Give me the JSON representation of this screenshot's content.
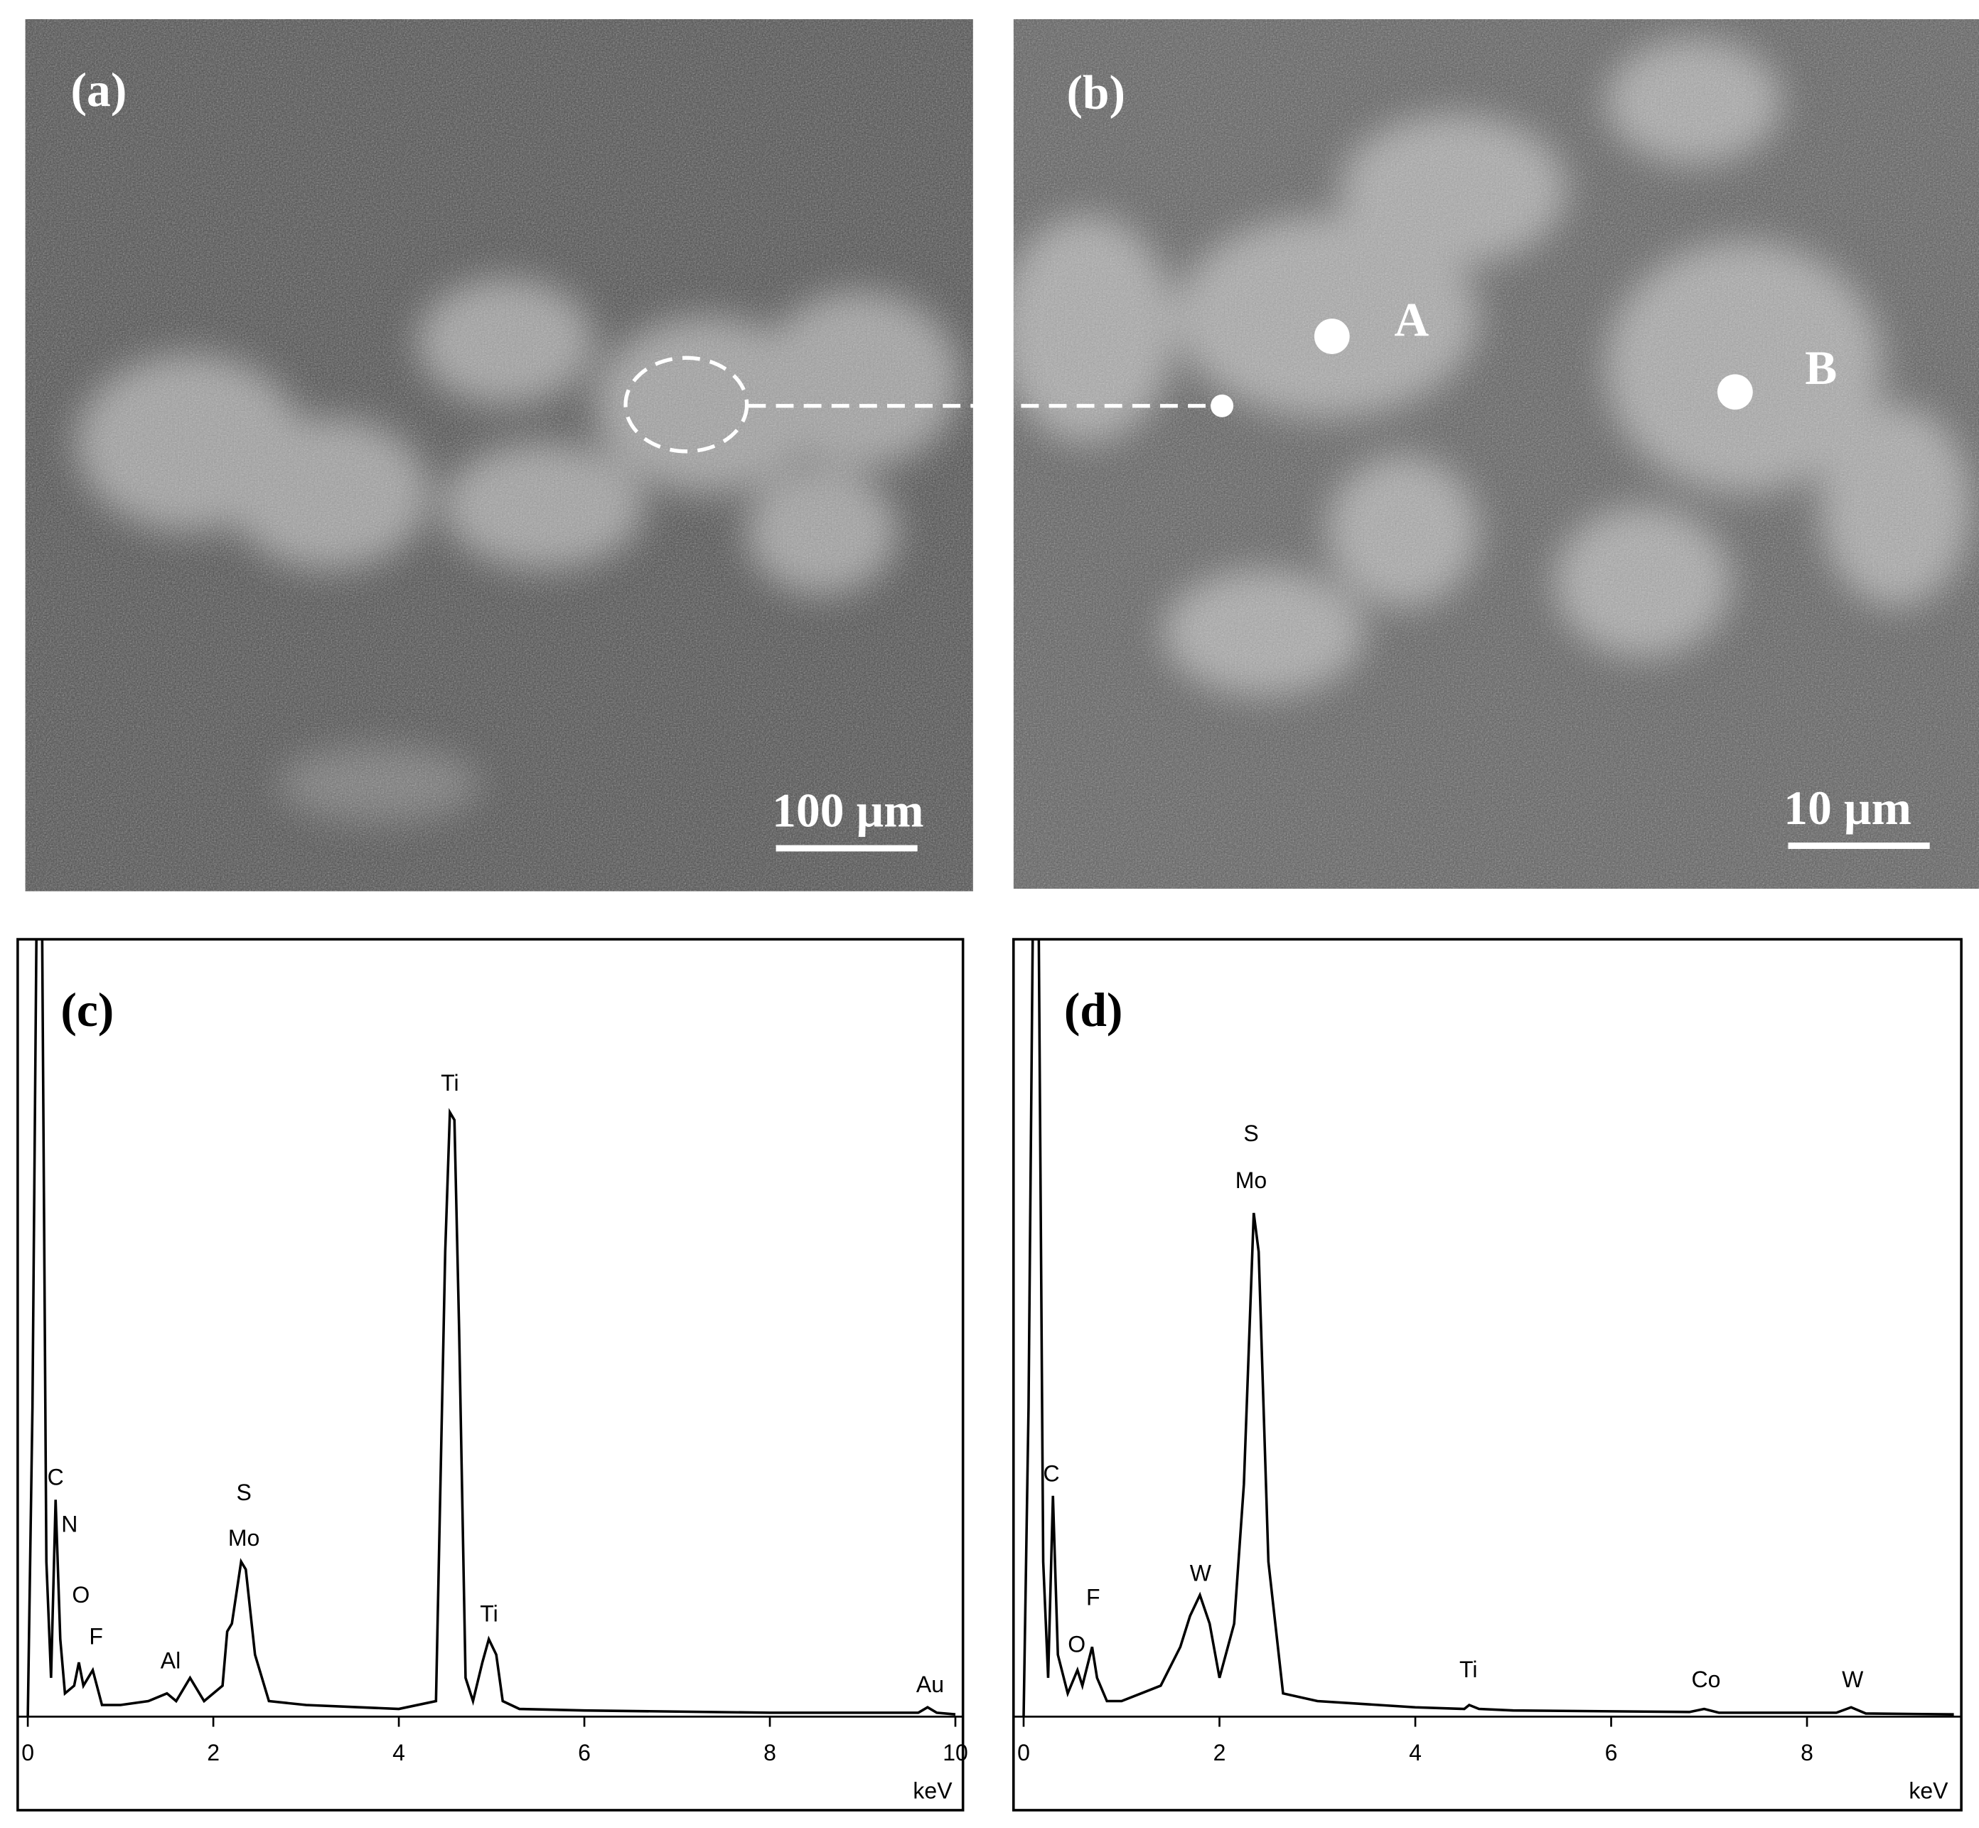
{
  "panels": [
    {
      "label": "(a)",
      "scale_bar": "100 µm"
    },
    {
      "label": "(b)",
      "scale_bar": "10 µm",
      "points": [
        "A",
        "B"
      ]
    }
  ],
  "chart_data": [
    {
      "type": "line",
      "title": "(c)",
      "x_label": "keV",
      "x": [
        0,
        0.05,
        0.1,
        0.15,
        0.2,
        0.25,
        0.3,
        0.35,
        0.4,
        0.5,
        0.55,
        0.6,
        0.7,
        0.8,
        1.0,
        1.3,
        1.5,
        1.6,
        1.75,
        1.9,
        2.1,
        2.15,
        2.2,
        2.3,
        2.35,
        2.45,
        2.6,
        3,
        4,
        4.4,
        4.5,
        4.55,
        4.6,
        4.65,
        4.72,
        4.8,
        4.9,
        4.97,
        5.05,
        5.12,
        5.3,
        6,
        8,
        9.6,
        9.7,
        9.8,
        10
      ],
      "values": [
        0,
        40,
        110,
        110,
        20,
        5,
        28,
        10,
        3,
        4,
        7,
        4,
        6,
        1.5,
        1.5,
        2,
        3,
        2,
        5,
        2,
        4,
        11,
        12,
        20,
        19,
        8,
        2,
        1.5,
        1,
        2,
        60,
        78,
        77,
        50,
        5,
        2,
        7,
        10,
        8,
        2,
        1,
        0.8,
        0.5,
        0.5,
        1.2,
        0.5,
        0.3
      ],
      "color": "#000000",
      "xlim": [
        0,
        10
      ],
      "ylim": [
        0,
        100
      ],
      "xticks": [
        0,
        2,
        4,
        6,
        8,
        10
      ],
      "annotations": [
        "C",
        "N",
        "O",
        "F",
        "Al",
        "S",
        "Mo",
        "Ti",
        "Ti",
        "Au"
      ]
    },
    {
      "type": "line",
      "title": "(d)",
      "x_label": "keV",
      "x": [
        0,
        0.05,
        0.1,
        0.15,
        0.2,
        0.25,
        0.3,
        0.35,
        0.45,
        0.55,
        0.6,
        0.7,
        0.75,
        0.85,
        1.0,
        1.2,
        1.4,
        1.6,
        1.7,
        1.8,
        1.9,
        2.0,
        2.15,
        2.25,
        2.35,
        2.4,
        2.5,
        2.65,
        3,
        4,
        4.5,
        4.55,
        4.65,
        5,
        6.8,
        6.95,
        7.1,
        8.3,
        8.45,
        8.6,
        9.5
      ],
      "values": [
        0,
        40,
        110,
        110,
        20,
        5,
        28.5,
        8,
        3,
        6,
        4,
        9,
        5,
        2,
        2,
        3,
        4,
        9,
        13,
        15.7,
        12,
        5,
        12,
        30,
        65,
        60,
        20,
        3,
        2,
        1.2,
        1,
        1.5,
        1,
        0.8,
        0.6,
        1,
        0.5,
        0.5,
        1.2,
        0.4,
        0.3
      ],
      "color": "#000000",
      "xlim": [
        0,
        9.55
      ],
      "ylim": [
        0,
        100
      ],
      "xticks": [
        0,
        2,
        4,
        6,
        8
      ],
      "annotations": [
        "C",
        "F",
        "O",
        "W",
        "S",
        "Mo",
        "Ti",
        "Co",
        "W"
      ]
    }
  ]
}
